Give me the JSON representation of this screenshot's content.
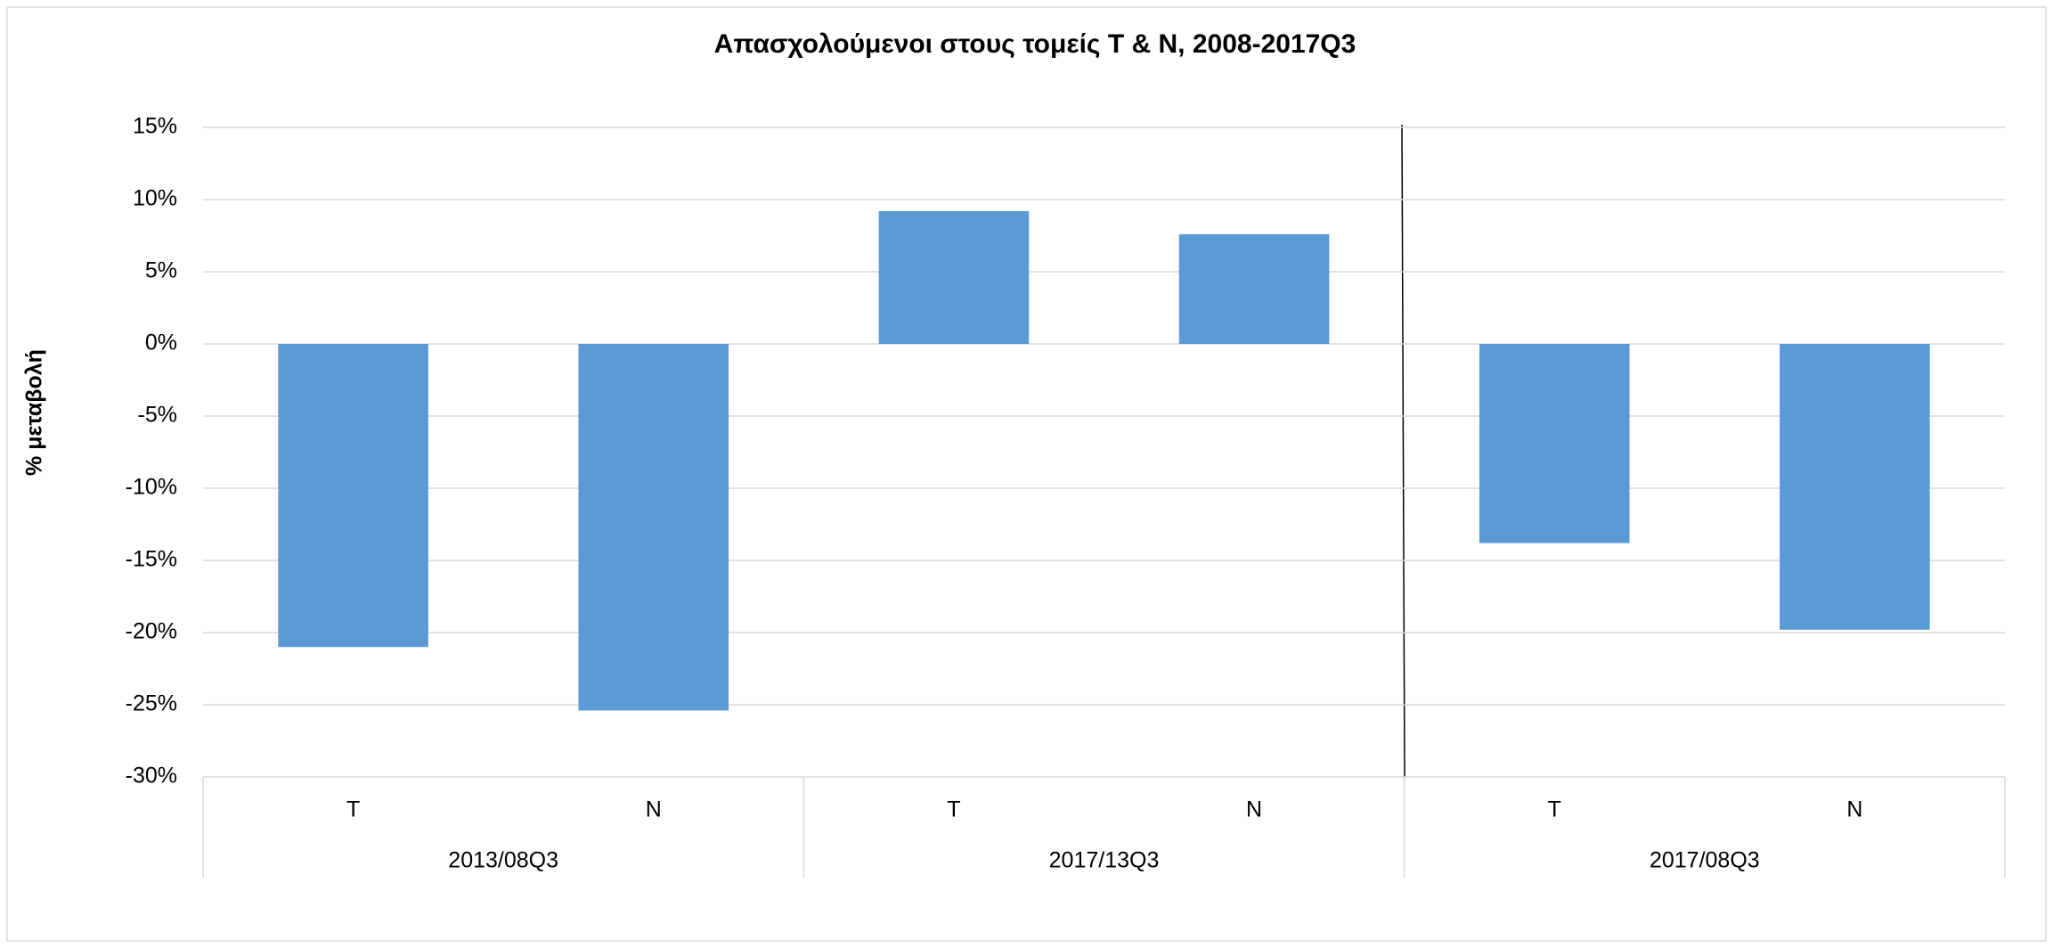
{
  "chart_data": {
    "type": "bar",
    "title": "Απασχολούμενοι στους τομείς Τ & Ν, 2008-2017Q3",
    "y_label": "% μεταβολή",
    "categories": [
      "Τ",
      "Ν",
      "Τ",
      "Ν",
      "Τ",
      "Ν"
    ],
    "groups": [
      "2013/08Q3",
      "2017/13Q3",
      "2017/08Q3"
    ],
    "values": [
      -21,
      -25.4,
      9.2,
      7.6,
      -13.8,
      -19.8
    ],
    "color": "#5b9bd5",
    "ylim": [
      -30,
      15
    ],
    "yticks": [
      {
        "value": -30,
        "label": "-30%"
      },
      {
        "value": -25,
        "label": "-25%"
      },
      {
        "value": -20,
        "label": "-20%"
      },
      {
        "value": -15,
        "label": "-15%"
      },
      {
        "value": -10,
        "label": "-10%"
      },
      {
        "value": -5,
        "label": "-5%"
      },
      {
        "value": 0,
        "label": "0%"
      },
      {
        "value": 5,
        "label": "5%"
      },
      {
        "value": 10,
        "label": "10%"
      },
      {
        "value": 15,
        "label": "15%"
      }
    ],
    "grid": true
  }
}
